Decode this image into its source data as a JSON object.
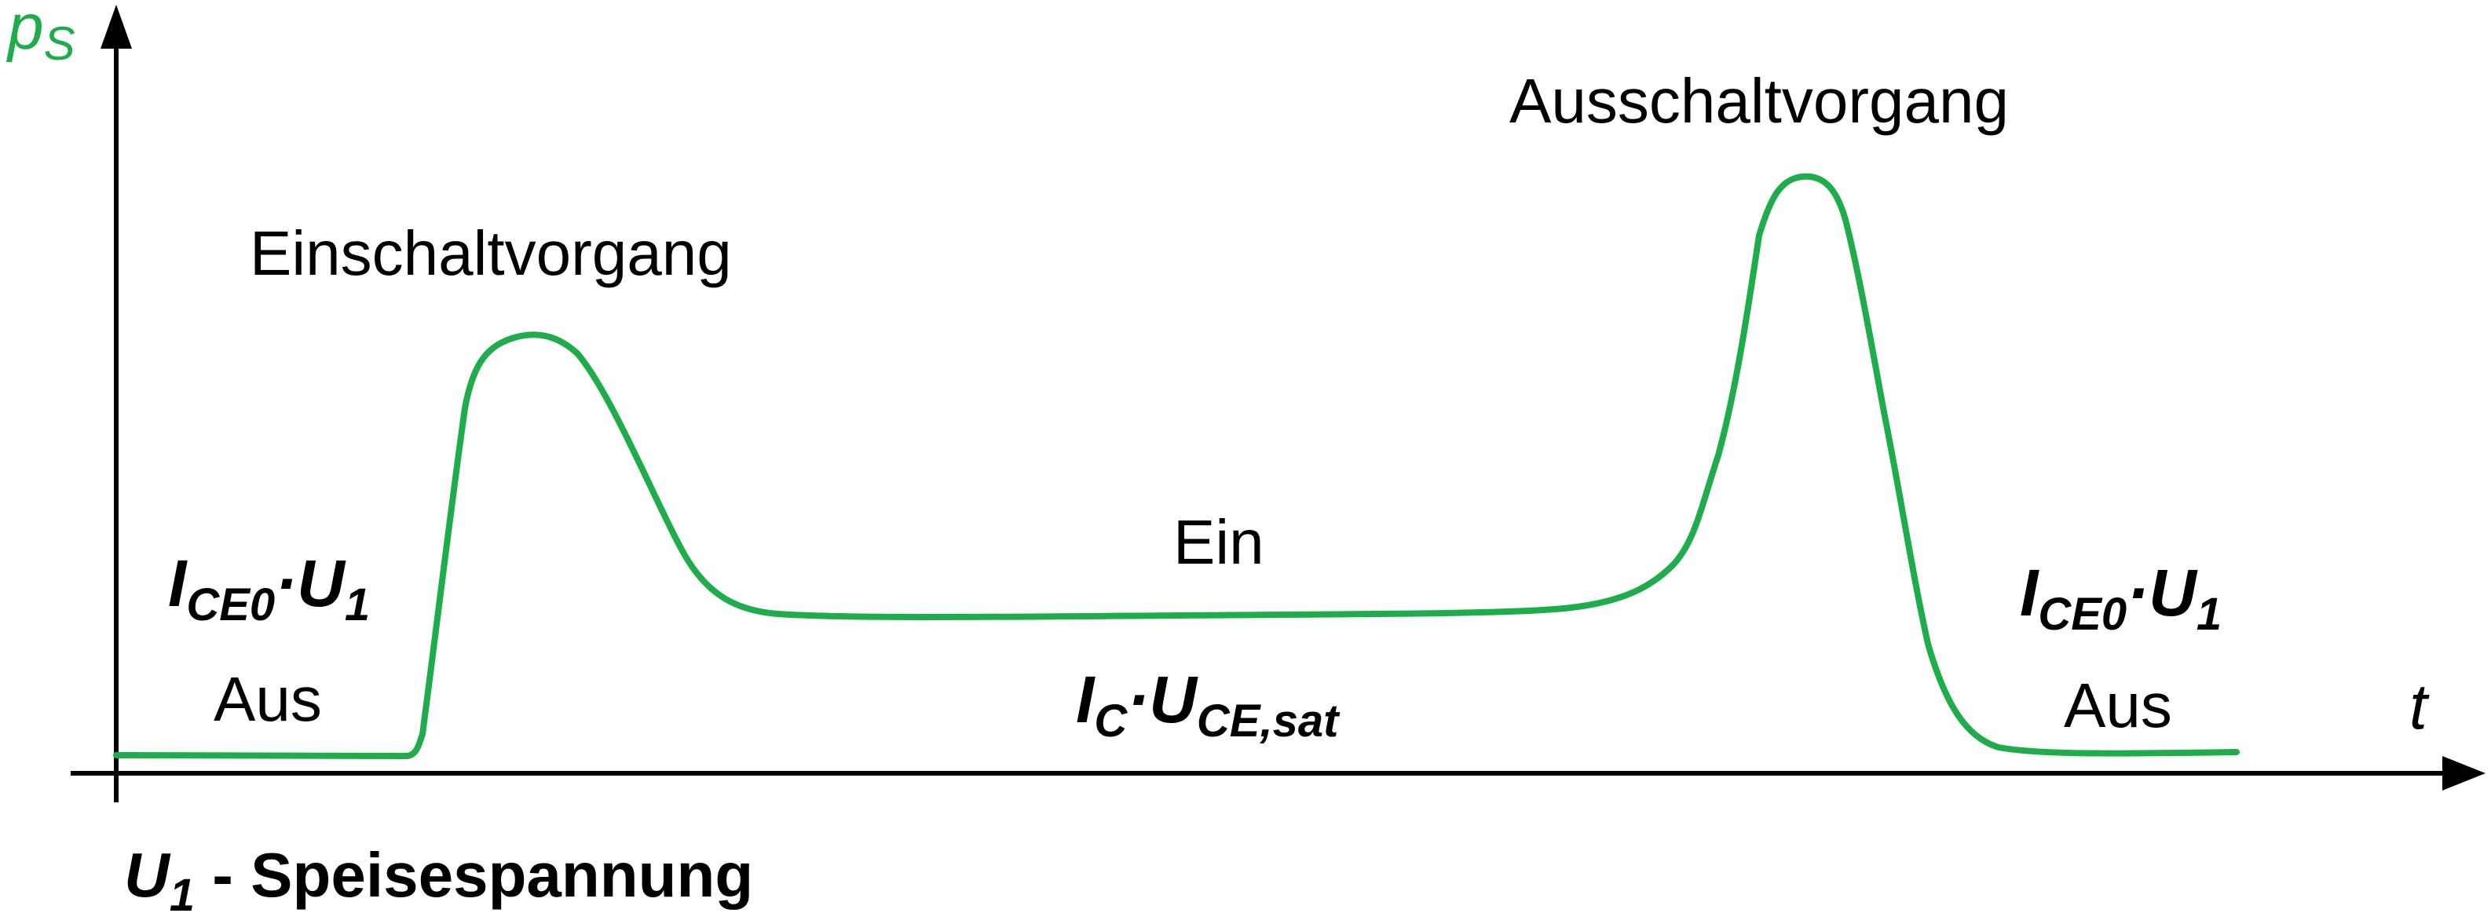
{
  "y_axis": {
    "symbol": "p",
    "subscript": "S",
    "color": "#1fad4b"
  },
  "x_axis": {
    "symbol": "t"
  },
  "phases": {
    "einschalt": "Einschaltvorgang",
    "ausschalt": "Ausschaltvorgang",
    "ein": "Ein",
    "aus_left": "Aus",
    "aus_right": "Aus"
  },
  "formulas": {
    "off_left": {
      "I": "I",
      "I_sub": "CE0",
      "dot": "·",
      "U": "U",
      "U_sub": "1"
    },
    "off_right": {
      "I": "I",
      "I_sub": "CE0",
      "dot": "·",
      "U": "U",
      "U_sub": "1"
    },
    "on": {
      "I": "I",
      "I_sub": "C",
      "dot": "·",
      "U": "U",
      "U_sub": "CE,sat"
    }
  },
  "caption": {
    "U": "U",
    "U_sub": "1",
    "text": " - Speisespannung"
  },
  "colors": {
    "curve": "#1fad4b",
    "axes": "#000000",
    "text": "#000000"
  }
}
